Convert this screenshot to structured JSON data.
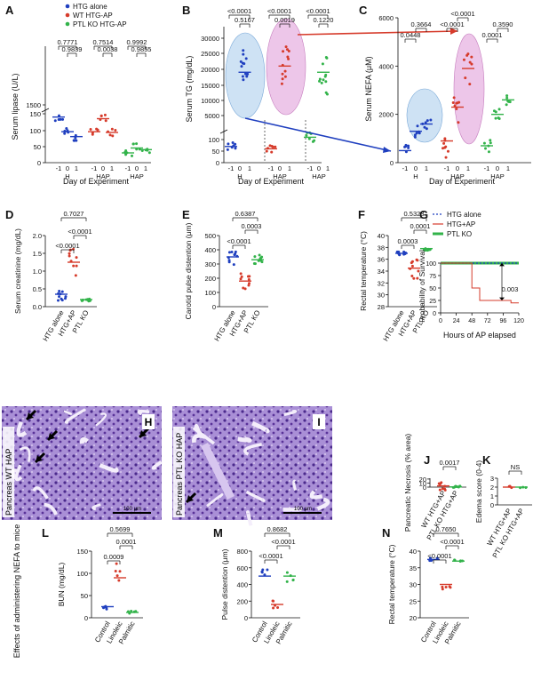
{
  "colors": {
    "htg": "#1f3fbf",
    "wt": "#d63b2b",
    "ptl": "#32b34a",
    "pink": "#e9b8e3",
    "blue": "#b9d6ef",
    "tissue": "#8b6fc0"
  },
  "legend_A": [
    "HTG alone",
    "WT HTG-AP",
    "PTL KO HTG-AP"
  ],
  "legend_G": [
    "HTG alone",
    "HTG+AP",
    "PTL KO"
  ],
  "row3_title": "Effects of administering NEFA to mice",
  "chart_data": [
    {
      "panel": "A",
      "type": "scatter",
      "ylabel": "Serum lipase (U/L)",
      "xlabel": "Day of Experiment",
      "y_ticks": [
        "0",
        "50",
        "100",
        "150",
        "1500"
      ],
      "groups": [
        {
          "label": "H",
          "ticks": [
            "-1",
            "0",
            "1"
          ]
        },
        {
          "label": "HAP",
          "ticks": [
            "-1",
            "0",
            "1"
          ]
        },
        {
          "label": "HAP",
          "ticks": [
            "-1",
            "0",
            "1"
          ]
        }
      ],
      "means": [
        {
          "name": "HTG alone",
          "values": [
            [
              -1,
              140
            ],
            [
              0,
              95
            ],
            [
              1,
              80
            ]
          ]
        },
        {
          "name": "WT HTG-AP",
          "values": [
            [
              -1,
              95
            ],
            [
              0,
              135
            ],
            [
              1,
              480
            ]
          ]
        },
        {
          "name": "PTL KO HTG-AP",
          "values": [
            [
              -1,
              30
            ],
            [
              0,
              45
            ],
            [
              1,
              40
            ]
          ]
        }
      ],
      "pvalues": [
        "0.7771",
        "0.9839",
        "0.7514",
        "0.0038",
        "0.9992",
        "0.9855"
      ]
    },
    {
      "panel": "B",
      "type": "scatter",
      "ylabel": "Serum TG (mg/dL)",
      "xlabel": "Day of Experiment",
      "y_ticks": [
        "0",
        "50",
        "100",
        "5000",
        "10000",
        "15000",
        "20000",
        "25000",
        "30000"
      ],
      "groups": [
        {
          "label": "H",
          "ticks": [
            "-1",
            "0",
            "1"
          ]
        },
        {
          "label": "HAP",
          "ticks": [
            "-1",
            "0",
            "1"
          ]
        },
        {
          "label": "HAP",
          "ticks": [
            "-1",
            "0",
            "1"
          ]
        }
      ],
      "means": [
        {
          "name": "HTG alone",
          "values": [
            [
              -1,
              70
            ],
            [
              0,
              19000
            ],
            [
              1,
              20000
            ]
          ]
        },
        {
          "name": "WT HTG-AP",
          "values": [
            [
              -1,
              60
            ],
            [
              0,
              21000
            ],
            [
              1,
              18000
            ]
          ]
        },
        {
          "name": "PTL KO HTG-AP",
          "values": [
            [
              -1,
              110
            ],
            [
              0,
              19000
            ],
            [
              1,
              22000
            ]
          ]
        }
      ],
      "pvalues": [
        "<0.0001",
        "0.5167",
        "<0.0001",
        "0.0019",
        "<0.0001",
        "0.1220"
      ]
    },
    {
      "panel": "C",
      "type": "scatter",
      "ylabel": "Serum NEFA (μM)",
      "xlabel": "Day of Experiment",
      "y_ticks": [
        "0",
        "2000",
        "4000",
        "6000"
      ],
      "groups": [
        {
          "label": "H",
          "ticks": [
            "-1",
            "0",
            "1"
          ]
        },
        {
          "label": "HAP",
          "ticks": [
            "-1",
            "0",
            "1"
          ]
        },
        {
          "label": "HAP",
          "ticks": [
            "-1",
            "0",
            "1"
          ]
        }
      ],
      "means": [
        {
          "name": "HTG alone",
          "values": [
            [
              -1,
              500
            ],
            [
              0,
              1300
            ],
            [
              1,
              1600
            ]
          ]
        },
        {
          "name": "WT HTG-AP",
          "values": [
            [
              -1,
              900
            ],
            [
              0,
              2300
            ],
            [
              1,
              3900
            ]
          ]
        },
        {
          "name": "PTL KO HTG-AP",
          "values": [
            [
              -1,
              700
            ],
            [
              0,
              2000
            ],
            [
              1,
              2600
            ]
          ]
        }
      ],
      "pvalues": [
        "0.0448",
        "0.3664",
        "<0.0001",
        "<0.0001",
        "0.0001",
        "0.3590"
      ]
    },
    {
      "panel": "D",
      "type": "scatter",
      "ylabel": "Serum creatinine (mg/dL)",
      "categories": [
        "HTG alone",
        "HTG+AP",
        "PTL KO"
      ],
      "y_ticks": [
        "0.0",
        "0.5",
        "1.0",
        "1.5",
        "2.0"
      ],
      "ylim": [
        0,
        2
      ],
      "means": [
        0.35,
        1.25,
        0.2
      ],
      "pvalues": [
        "0.7027",
        "<0.0001",
        "<0.0001"
      ]
    },
    {
      "panel": "E",
      "type": "scatter",
      "ylabel": "Carotid pulse distention (μm)",
      "categories": [
        "HTG alone",
        "HTG+AP",
        "PTL KO"
      ],
      "y_ticks": [
        "0",
        "100",
        "200",
        "300",
        "400",
        "500"
      ],
      "ylim": [
        0,
        500
      ],
      "means": [
        350,
        180,
        330
      ],
      "pvalues": [
        "0.6387",
        "<0.0001",
        "0.0003"
      ]
    },
    {
      "panel": "F",
      "type": "scatter",
      "ylabel": "Rectal temperature (°C)",
      "categories": [
        "HTG alone",
        "HTG+AP",
        "PTL KO"
      ],
      "y_ticks": [
        "28",
        "30",
        "32",
        "34",
        "36",
        "38",
        "40"
      ],
      "ylim": [
        28,
        40
      ],
      "means": [
        37,
        34.5,
        37.8
      ],
      "pvalues": [
        "0.5323",
        "0.0003",
        "0.0001"
      ]
    },
    {
      "panel": "G",
      "type": "line",
      "ylabel": "Probability of Survival",
      "xlabel": "Hours of AP elapsed",
      "x_ticks": [
        "0",
        "24",
        "48",
        "72",
        "96",
        "120"
      ],
      "y_ticks": [
        "0",
        "25",
        "50",
        "75",
        "100"
      ],
      "xlim": [
        0,
        120
      ],
      "ylim": [
        0,
        100
      ],
      "series": [
        {
          "name": "HTG alone",
          "x": [
            0,
            120
          ],
          "y": [
            100,
            100
          ]
        },
        {
          "name": "HTG+AP",
          "x": [
            0,
            48,
            48,
            60,
            60,
            108,
            108,
            120
          ],
          "y": [
            100,
            100,
            50,
            50,
            25,
            25,
            20,
            20
          ]
        },
        {
          "name": "PTL KO",
          "x": [
            0,
            120
          ],
          "y": [
            100,
            100
          ]
        }
      ],
      "pvalues": [
        "0.003"
      ]
    },
    {
      "panel": "J",
      "type": "scatter",
      "ylabel": "Pancreatic Necrosis (% area)",
      "categories": [
        "WT HTG+AP",
        "PTL KO HTG+AP"
      ],
      "y_ticks": [
        "0",
        "10",
        "20"
      ],
      "ylim": [
        0,
        22
      ],
      "means": [
        3,
        0.5
      ],
      "pvalues": [
        "0.0017"
      ]
    },
    {
      "panel": "K",
      "type": "scatter",
      "ylabel": "Edema score (0-4)",
      "categories": [
        "WT HTG+AP",
        "PTL KO HTG+AP"
      ],
      "y_ticks": [
        "0",
        "1",
        "2",
        "3"
      ],
      "ylim": [
        0,
        3
      ],
      "means": [
        2,
        2
      ],
      "pvalues": [
        "NS"
      ]
    },
    {
      "panel": "L",
      "type": "scatter",
      "ylabel": "BUN (mg/dL)",
      "categories": [
        "Control",
        "Linoleic",
        "Palmitic"
      ],
      "y_ticks": [
        "0",
        "50",
        "100",
        "150"
      ],
      "ylim": [
        0,
        150
      ],
      "means": [
        25,
        90,
        12
      ],
      "pvalues": [
        "0.5699",
        "0.0009",
        "0.0001"
      ]
    },
    {
      "panel": "M",
      "type": "scatter",
      "ylabel": "Pulse distention (μm)",
      "categories": [
        "Control",
        "Linoleic",
        "Palmitic"
      ],
      "y_ticks": [
        "0",
        "200",
        "400",
        "600",
        "800"
      ],
      "ylim": [
        0,
        800
      ],
      "means": [
        500,
        160,
        500
      ],
      "pvalues": [
        "0.8682",
        "<0.0001",
        "<0.0001"
      ]
    },
    {
      "panel": "N",
      "type": "scatter",
      "ylabel": "Rectal temperature (°C)",
      "categories": [
        "Control",
        "Linoleic",
        "Palmitic"
      ],
      "y_ticks": [
        "20",
        "25",
        "30",
        "35",
        "40"
      ],
      "ylim": [
        20,
        40
      ],
      "means": [
        37.5,
        30,
        37
      ],
      "pvalues": [
        "0.7650",
        "<0.0001",
        "<0.0001"
      ]
    }
  ],
  "images": [
    {
      "panel": "H",
      "label": "Pancreas WT HAP",
      "scale": "100 μm"
    },
    {
      "panel": "I",
      "label": "Pancreas PTL KO HAP",
      "scale": "100 μm"
    }
  ]
}
